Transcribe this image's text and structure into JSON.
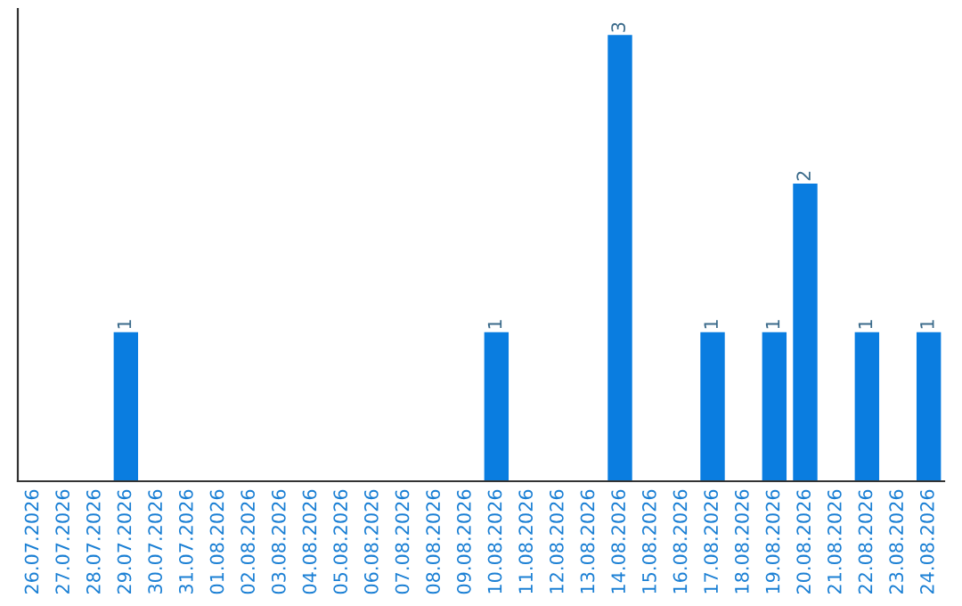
{
  "chart_data": {
    "type": "bar",
    "categories": [
      "26.07.2026",
      "27.07.2026",
      "28.07.2026",
      "29.07.2026",
      "30.07.2026",
      "31.07.2026",
      "01.08.2026",
      "02.08.2026",
      "03.08.2026",
      "04.08.2026",
      "05.08.2026",
      "06.08.2026",
      "07.08.2026",
      "08.08.2026",
      "09.08.2026",
      "10.08.2026",
      "11.08.2026",
      "12.08.2026",
      "13.08.2026",
      "14.08.2026",
      "15.08.2026",
      "16.08.2026",
      "17.08.2026",
      "18.08.2026",
      "19.08.2026",
      "20.08.2026",
      "21.08.2026",
      "22.08.2026",
      "23.08.2026",
      "24.08.2026"
    ],
    "values": [
      0,
      0,
      0,
      1,
      0,
      0,
      0,
      0,
      0,
      0,
      0,
      0,
      0,
      0,
      0,
      1,
      0,
      0,
      0,
      3,
      0,
      0,
      1,
      0,
      1,
      2,
      0,
      1,
      0,
      1
    ],
    "value_labels": [
      null,
      null,
      null,
      "1",
      null,
      null,
      null,
      null,
      null,
      null,
      null,
      null,
      null,
      null,
      null,
      "1",
      null,
      null,
      null,
      "3",
      null,
      null,
      "1",
      null,
      "1",
      "2",
      null,
      "1",
      null,
      "1"
    ],
    "color": "#0a7de0",
    "grid": false,
    "legend": false
  }
}
